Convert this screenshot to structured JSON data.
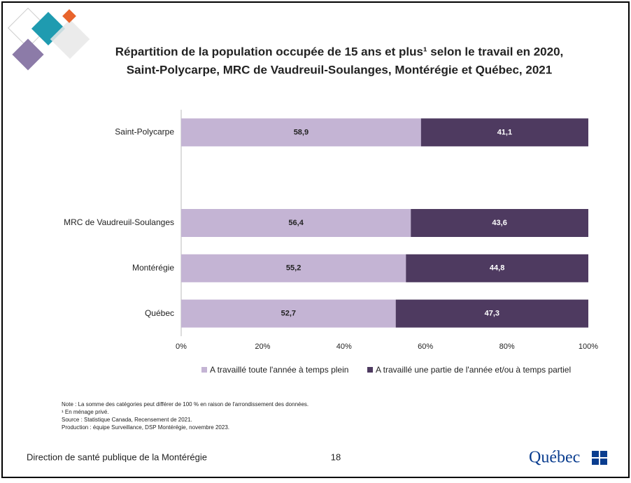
{
  "chart_data": {
    "type": "stacked-barh",
    "title": [
      "Répartition de la population occupée de 15 ans et plus¹ selon le travail en 2020,",
      "Saint-Polycarpe, MRC de Vaudreuil-Soulanges, Montérégie et Québec, 2021"
    ],
    "categories": [
      "Saint-Polycarpe",
      null,
      "MRC de Vaudreuil-Soulanges",
      "Montérégie",
      "Québec"
    ],
    "series": [
      {
        "name": "A travaillé toute l'année à temps plein",
        "color": "#c4b4d4",
        "values": [
          58.9,
          null,
          56.4,
          55.2,
          52.7
        ],
        "value_labels": [
          "58,9",
          null,
          "56,4",
          "55,2",
          "52,7"
        ]
      },
      {
        "name": "A travaillé une partie de l'année et/ou à temps partiel",
        "color": "#4e3a60",
        "values": [
          41.1,
          null,
          43.6,
          44.8,
          47.3
        ],
        "value_labels": [
          "41,1",
          null,
          "43,6",
          "44,8",
          "47,3"
        ]
      }
    ],
    "xlim": [
      0,
      100
    ],
    "xticks": [
      {
        "value": 0,
        "label": "0%"
      },
      {
        "value": 20,
        "label": "20%"
      },
      {
        "value": 40,
        "label": "40%"
      },
      {
        "value": 60,
        "label": "60%"
      },
      {
        "value": 80,
        "label": "80%"
      },
      {
        "value": 100,
        "label": "100%"
      }
    ],
    "legend": "bottom",
    "notes": [
      "Note : La somme des catégories peut différer de 100 % en raison de l'arrondissement des données.",
      "¹ En ménage privé.",
      "Source : Statistique Canada, Recensement de 2021.",
      "Production : équipe Surveillance, DSP Montérégie, novembre 2023."
    ]
  },
  "footer": {
    "organization": "Direction de santé publique de la Montérégie",
    "page": "18",
    "logo": "Québec"
  }
}
